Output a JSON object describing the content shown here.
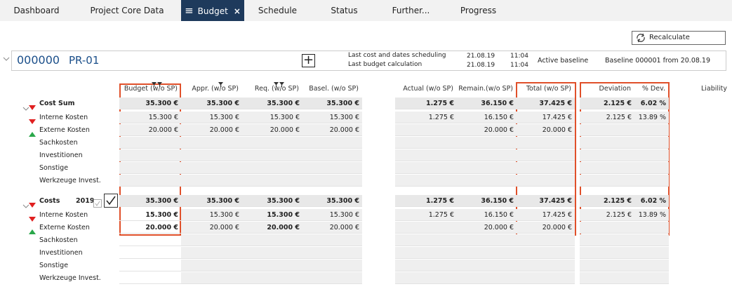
{
  "tabs": [
    "Dashboard",
    "Project Core Data",
    "Budget",
    "Schedule",
    "Status",
    "Further...",
    "Progress"
  ],
  "active_tab": 2,
  "toolbar": {
    "recalculate": "Recalculate"
  },
  "project": {
    "number": "000000",
    "name": "PR-01",
    "schedule_labels": [
      "Last cost and dates scheduling",
      "Last budget calculation"
    ],
    "schedule_dates": [
      "21.08.19",
      "21.08.19"
    ],
    "schedule_times": [
      "11:04",
      "11:04"
    ],
    "baseline_label": "Active baseline",
    "baseline": "Baseline 000001 from 20.08.19"
  },
  "columns": [
    "Budget (w/o SP)",
    "Appr. (w/o SP)",
    "Req. (w/o SP)",
    "Basel. (w/o SP)",
    "Actual (w/o SP)",
    "Remain.(w/o SP)",
    "Total (w/o SP)",
    "Deviation",
    "% Dev.",
    "Liability"
  ],
  "sections": [
    {
      "title": "Cost Sum",
      "totals": [
        "35.300 €",
        "35.300 €",
        "35.300 €",
        "35.300 €",
        "1.275 €",
        "36.150 €",
        "37.425 €",
        "2.125 €",
        "6.02 %"
      ],
      "rows": [
        {
          "label": "Interne Kosten",
          "trend": "down",
          "cells": [
            "15.300 €",
            "15.300 €",
            "15.300 €",
            "15.300 €",
            "1.275 €",
            "16.150 €",
            "17.425 €",
            "2.125 €",
            "13.89 %"
          ]
        },
        {
          "label": "Externe Kosten",
          "trend": "up",
          "cells": [
            "20.000 €",
            "20.000 €",
            "20.000 €",
            "20.000 €",
            null,
            "20.000 €",
            "20.000 €",
            null,
            null
          ]
        },
        {
          "label": "Sachkosten",
          "cells": [
            null,
            null,
            null,
            null,
            null,
            null,
            null,
            null,
            null
          ]
        },
        {
          "label": "Investitionen",
          "cells": [
            null,
            null,
            null,
            null,
            null,
            null,
            null,
            null,
            null
          ]
        },
        {
          "label": "Sonstige",
          "cells": [
            null,
            null,
            null,
            null,
            null,
            null,
            null,
            null,
            null
          ]
        },
        {
          "label": "Werkzeuge Invest.",
          "cells": [
            null,
            null,
            null,
            null,
            null,
            null,
            null,
            null,
            null
          ]
        }
      ]
    },
    {
      "title": "Costs",
      "year": "2019",
      "totals": [
        "35.300 €",
        "35.300 €",
        "35.300 €",
        "35.300 €",
        "1.275 €",
        "36.150 €",
        "37.425 €",
        "2.125 €",
        "6.02 %"
      ],
      "rows": [
        {
          "label": "Interne Kosten",
          "trend": "down",
          "cells": [
            "15.300 €",
            "15.300 €",
            "15.300 €",
            "15.300 €",
            "1.275 €",
            "16.150 €",
            "17.425 €",
            "2.125 €",
            "13.89 %"
          ]
        },
        {
          "label": "Externe Kosten",
          "trend": "up",
          "cells": [
            "20.000 €",
            "20.000 €",
            "20.000 €",
            "20.000 €",
            null,
            "20.000 €",
            "20.000 €",
            null,
            null
          ]
        },
        {
          "label": "Sachkosten",
          "cells": [
            null,
            null,
            null,
            null,
            null,
            null,
            null,
            null,
            null
          ]
        },
        {
          "label": "Investitionen",
          "cells": [
            null,
            null,
            null,
            null,
            null,
            null,
            null,
            null,
            null
          ]
        },
        {
          "label": "Sonstige",
          "cells": [
            null,
            null,
            null,
            null,
            null,
            null,
            null,
            null,
            null
          ]
        },
        {
          "label": "Werkzeuge Invest.",
          "cells": [
            null,
            null,
            null,
            null,
            null,
            null,
            null,
            null,
            null
          ]
        }
      ]
    }
  ]
}
